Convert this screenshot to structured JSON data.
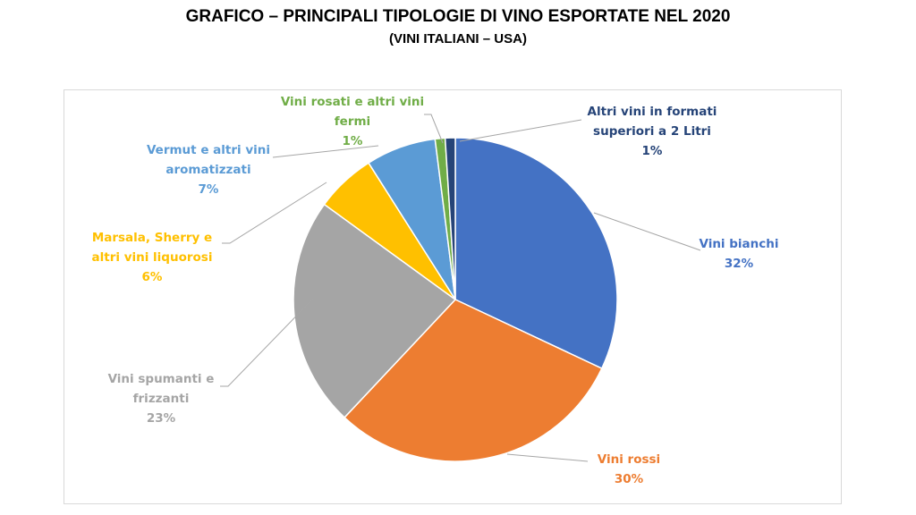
{
  "header": {
    "title": "GRAFICO – PRINCIPALI TIPOLOGIE DI VINO ESPORTATE NEL  2020",
    "subtitle": "(VINI ITALIANI – USA)"
  },
  "chart_data": {
    "type": "pie",
    "title": "GRAFICO – PRINCIPALI TIPOLOGIE DI VINO ESPORTATE NEL  2020",
    "subtitle": "(VINI ITALIANI – USA)",
    "slices": [
      {
        "label_lines": [
          "Vini bianchi"
        ],
        "value": 32,
        "value_label": "32%",
        "color": "#4472c4"
      },
      {
        "label_lines": [
          "Vini rossi"
        ],
        "value": 30,
        "value_label": "30%",
        "color": "#ed7d31"
      },
      {
        "label_lines": [
          "Vini spumanti  e",
          "frizzanti"
        ],
        "value": 23,
        "value_label": "23%",
        "color": "#a5a5a5"
      },
      {
        "label_lines": [
          "Marsala,  Sherry e",
          "altri vini liquorosi"
        ],
        "value": 6,
        "value_label": "6%",
        "color": "#ffc000"
      },
      {
        "label_lines": [
          "Vermut e altri vini",
          "aromatizzati"
        ],
        "value": 7,
        "value_label": "7%",
        "color": "#5b9bd5"
      },
      {
        "label_lines": [
          "Vini rosati  e altri vini",
          "fermi"
        ],
        "value": 1,
        "value_label": "1%",
        "color": "#70ad47"
      },
      {
        "label_lines": [
          "Altri vini in formati",
          "superiori a 2 Litri"
        ],
        "value": 1,
        "value_label": "1%",
        "color": "#264478"
      }
    ],
    "legend": "none"
  }
}
